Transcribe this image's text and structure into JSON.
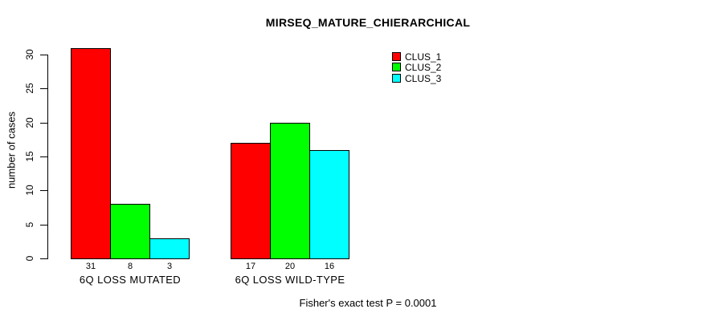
{
  "chart_data": {
    "type": "bar",
    "title": "MIRSEQ_MATURE_CHIERARCHICAL",
    "ylabel": "number of cases",
    "xlabel": "",
    "categories": [
      "6Q LOSS MUTATED",
      "6Q LOSS WILD-TYPE"
    ],
    "series": [
      {
        "name": "CLUS_1",
        "color": "#ff0000",
        "values": [
          31,
          17
        ]
      },
      {
        "name": "CLUS_2",
        "color": "#00ff00",
        "values": [
          8,
          20
        ]
      },
      {
        "name": "CLUS_3",
        "color": "#00ffff",
        "values": [
          3,
          16
        ]
      }
    ],
    "bar_value_labels": [
      [
        "31",
        "8",
        "3"
      ],
      [
        "17",
        "20",
        "16"
      ]
    ],
    "yticks": [
      0,
      5,
      10,
      15,
      20,
      25,
      30
    ],
    "ylim": [
      0,
      30
    ],
    "grid": false,
    "legend": {
      "position": "top-right",
      "entries": [
        "CLUS_1",
        "CLUS_2",
        "CLUS_3"
      ]
    },
    "annotation": "Fisher's exact test P = 0.0001",
    "colors": {
      "background": "#ffffff",
      "axis": "#000000",
      "bar_border": "#000000",
      "text": "#000000"
    }
  }
}
